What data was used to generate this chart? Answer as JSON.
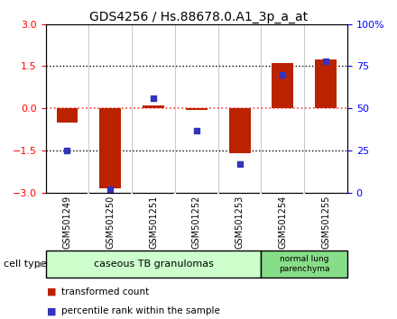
{
  "title": "GDS4256 / Hs.88678.0.A1_3p_a_at",
  "samples": [
    "GSM501249",
    "GSM501250",
    "GSM501251",
    "GSM501252",
    "GSM501253",
    "GSM501254",
    "GSM501255"
  ],
  "red_values": [
    -0.5,
    -2.85,
    0.1,
    -0.05,
    -1.6,
    1.6,
    1.75
  ],
  "blue_values_raw": [
    25,
    2,
    56,
    37,
    17,
    70,
    78
  ],
  "ylim_left": [
    -3,
    3
  ],
  "ylim_right": [
    0,
    100
  ],
  "yticks_left": [
    -3,
    -1.5,
    0,
    1.5,
    3
  ],
  "yticks_right": [
    0,
    25,
    50,
    75,
    100
  ],
  "group1_label": "caseous TB granulomas",
  "group2_label": "normal lung\nparenchyma",
  "cell_type_label": "cell type",
  "legend_red": "transformed count",
  "legend_blue": "percentile rank within the sample",
  "bar_width": 0.5,
  "red_color": "#bb2200",
  "blue_color": "#3333bb",
  "group1_color": "#ccffcc",
  "group2_color": "#88dd88",
  "sample_box_color": "#cccccc",
  "bg_color": "#ffffff",
  "plot_bg": "#ffffff",
  "dotted_line_red": "#ff4444",
  "dotted_line_black": "#000000",
  "title_fontsize": 10,
  "tick_fontsize": 8,
  "label_fontsize": 7,
  "legend_fontsize": 7.5
}
